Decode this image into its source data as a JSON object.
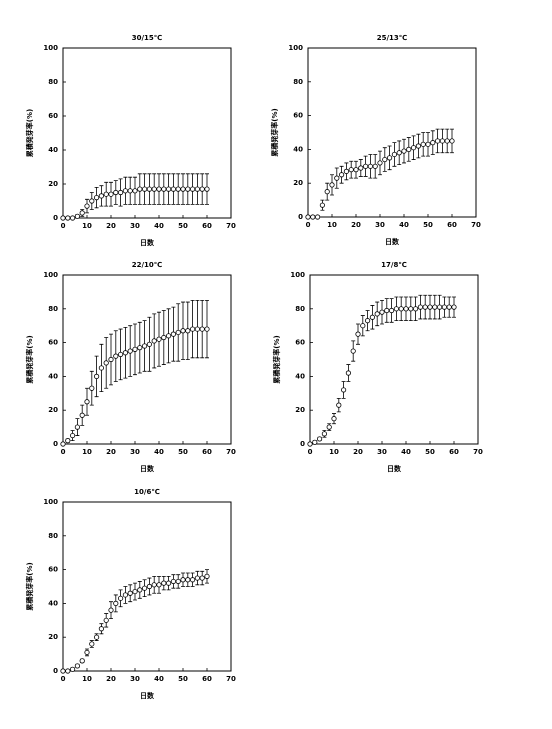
{
  "chart_data": [
    {
      "type": "scatter",
      "title": "30/15℃",
      "xlabel": "日数",
      "ylabel": "累積発芽率(%)",
      "xlim": [
        0,
        70
      ],
      "xticks": [
        0,
        10,
        20,
        30,
        40,
        50,
        60,
        70
      ],
      "ylim": [
        0,
        100
      ],
      "yticks": [
        0,
        20,
        40,
        60,
        80,
        100
      ],
      "x": [
        0,
        2,
        4,
        6,
        8,
        10,
        12,
        14,
        16,
        18,
        20,
        22,
        24,
        26,
        28,
        30,
        32,
        34,
        36,
        38,
        40,
        42,
        44,
        46,
        48,
        50,
        52,
        54,
        56,
        58,
        60
      ],
      "values": [
        0,
        0,
        0,
        1,
        3,
        7,
        10,
        12,
        13,
        14,
        14,
        15,
        15,
        16,
        16,
        16,
        17,
        17,
        17,
        17,
        17,
        17,
        17,
        17,
        17,
        17,
        17,
        17,
        17,
        17,
        17
      ],
      "errors": [
        0,
        0,
        0,
        1,
        2,
        4,
        5,
        6,
        6,
        7,
        7,
        7,
        8,
        8,
        8,
        8,
        9,
        9,
        9,
        9,
        9,
        9,
        9,
        9,
        9,
        9,
        9,
        9,
        9,
        9,
        9
      ]
    },
    {
      "type": "scatter",
      "title": "25/13℃",
      "xlabel": "日数",
      "ylabel": "累積発芽率(%)",
      "xlim": [
        0,
        70
      ],
      "xticks": [
        0,
        10,
        20,
        30,
        40,
        50,
        60,
        70
      ],
      "ylim": [
        0,
        100
      ],
      "yticks": [
        0,
        20,
        40,
        60,
        80,
        100
      ],
      "x": [
        0,
        2,
        4,
        6,
        8,
        10,
        12,
        14,
        16,
        18,
        20,
        22,
        24,
        26,
        28,
        30,
        32,
        34,
        36,
        38,
        40,
        42,
        44,
        46,
        48,
        50,
        52,
        54,
        56,
        58,
        60
      ],
      "values": [
        0,
        0,
        0,
        7,
        15,
        19,
        23,
        25,
        27,
        28,
        28,
        29,
        30,
        30,
        30,
        32,
        34,
        35,
        37,
        38,
        39,
        40,
        41,
        42,
        43,
        43,
        44,
        45,
        45,
        45,
        45
      ],
      "errors": [
        0,
        0,
        0,
        3,
        5,
        6,
        6,
        5,
        5,
        5,
        5,
        5,
        6,
        7,
        7,
        7,
        7,
        7,
        7,
        7,
        7,
        7,
        7,
        7,
        7,
        7,
        7,
        7,
        7,
        7,
        7
      ]
    },
    {
      "type": "scatter",
      "title": "22/10℃",
      "xlabel": "日数",
      "ylabel": "累積発芽率(%)",
      "xlim": [
        0,
        70
      ],
      "xticks": [
        0,
        10,
        20,
        30,
        40,
        50,
        60,
        70
      ],
      "ylim": [
        0,
        100
      ],
      "yticks": [
        0,
        20,
        40,
        60,
        80,
        100
      ],
      "x": [
        0,
        2,
        4,
        6,
        8,
        10,
        12,
        14,
        16,
        18,
        20,
        22,
        24,
        26,
        28,
        30,
        32,
        34,
        36,
        38,
        40,
        42,
        44,
        46,
        48,
        50,
        52,
        54,
        56,
        58,
        60
      ],
      "values": [
        0,
        2,
        5,
        10,
        17,
        25,
        33,
        40,
        45,
        48,
        50,
        52,
        53,
        54,
        55,
        56,
        57,
        58,
        59,
        61,
        62,
        63,
        64,
        65,
        66,
        67,
        67,
        68,
        68,
        68,
        68
      ],
      "errors": [
        0,
        1,
        3,
        5,
        6,
        8,
        10,
        12,
        14,
        15,
        15,
        15,
        15,
        15,
        15,
        15,
        15,
        15,
        16,
        16,
        16,
        16,
        16,
        16,
        17,
        17,
        17,
        17,
        17,
        17,
        17
      ]
    },
    {
      "type": "scatter",
      "title": "17/8℃",
      "xlabel": "日数",
      "ylabel": "累積発芽率(%)",
      "xlim": [
        0,
        70
      ],
      "xticks": [
        0,
        10,
        20,
        30,
        40,
        50,
        60,
        70
      ],
      "ylim": [
        0,
        100
      ],
      "yticks": [
        0,
        20,
        40,
        60,
        80,
        100
      ],
      "x": [
        0,
        2,
        4,
        6,
        8,
        10,
        12,
        14,
        16,
        18,
        20,
        22,
        24,
        26,
        28,
        30,
        32,
        34,
        36,
        38,
        40,
        42,
        44,
        46,
        48,
        50,
        52,
        54,
        56,
        58,
        60
      ],
      "values": [
        0,
        1,
        3,
        6,
        10,
        15,
        23,
        32,
        42,
        55,
        65,
        70,
        73,
        75,
        77,
        78,
        79,
        79,
        80,
        80,
        80,
        80,
        80,
        81,
        81,
        81,
        81,
        81,
        81,
        81,
        81
      ],
      "errors": [
        0,
        1,
        1,
        2,
        2,
        3,
        4,
        5,
        5,
        6,
        6,
        6,
        6,
        7,
        7,
        7,
        7,
        7,
        7,
        7,
        7,
        7,
        7,
        7,
        7,
        7,
        7,
        7,
        6,
        6,
        6
      ]
    },
    {
      "type": "scatter",
      "title": "10/6℃",
      "xlabel": "日数",
      "ylabel": "累積発芽率(%)",
      "xlim": [
        0,
        70
      ],
      "xticks": [
        0,
        10,
        20,
        30,
        40,
        50,
        60,
        70
      ],
      "ylim": [
        0,
        100
      ],
      "yticks": [
        0,
        20,
        40,
        60,
        80,
        100
      ],
      "x": [
        0,
        2,
        4,
        6,
        8,
        10,
        12,
        14,
        16,
        18,
        20,
        22,
        24,
        26,
        28,
        30,
        32,
        34,
        36,
        38,
        40,
        42,
        44,
        46,
        48,
        50,
        52,
        54,
        56,
        58,
        60
      ],
      "values": [
        0,
        0,
        1,
        3,
        6,
        11,
        16,
        20,
        25,
        30,
        36,
        40,
        43,
        45,
        46,
        47,
        48,
        49,
        50,
        51,
        51,
        52,
        52,
        53,
        53,
        54,
        54,
        54,
        55,
        55,
        56
      ],
      "errors": [
        0,
        0,
        1,
        1,
        1,
        2,
        2,
        2,
        3,
        4,
        5,
        5,
        5,
        5,
        5,
        5,
        5,
        5,
        5,
        5,
        5,
        4,
        4,
        4,
        4,
        4,
        4,
        4,
        4,
        4,
        4
      ]
    }
  ]
}
